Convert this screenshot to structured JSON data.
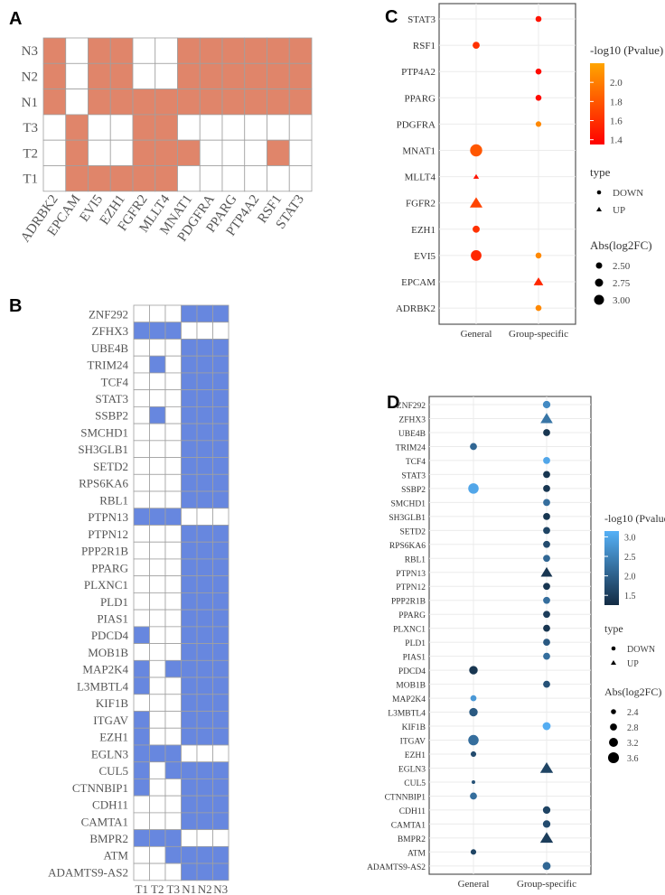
{
  "panels": {
    "a": "A",
    "b": "B",
    "c": "C",
    "d": "D"
  },
  "chart_data": [
    {
      "id": "A",
      "type": "heatmap",
      "colors": {
        "on": "#e0856a",
        "off": "#ffffff"
      },
      "columns": [
        "ADRBK2",
        "EPCAM",
        "EVI5",
        "EZH1",
        "FGFR2",
        "MLLT4",
        "MNAT1",
        "PDGFRA",
        "PPARG",
        "PTP4A2",
        "RSF1",
        "STAT3"
      ],
      "rows": [
        "N3",
        "N2",
        "N1",
        "T3",
        "T2",
        "T1"
      ],
      "values": [
        [
          1,
          0,
          1,
          1,
          0,
          0,
          1,
          1,
          1,
          1,
          1,
          1
        ],
        [
          1,
          0,
          1,
          1,
          0,
          0,
          1,
          1,
          1,
          1,
          1,
          1
        ],
        [
          1,
          0,
          1,
          1,
          1,
          1,
          1,
          1,
          1,
          1,
          1,
          1
        ],
        [
          0,
          1,
          0,
          0,
          1,
          1,
          0,
          0,
          0,
          0,
          0,
          0
        ],
        [
          0,
          1,
          0,
          0,
          1,
          1,
          1,
          0,
          0,
          0,
          1,
          0
        ],
        [
          0,
          1,
          1,
          1,
          1,
          1,
          0,
          0,
          0,
          0,
          0,
          0
        ]
      ]
    },
    {
      "id": "B",
      "type": "heatmap",
      "colors": {
        "on": "#6787df",
        "off": "#ffffff"
      },
      "columns": [
        "T1",
        "T2",
        "T3",
        "N1",
        "N2",
        "N3"
      ],
      "rows": [
        "ZNF292",
        "ZFHX3",
        "UBE4B",
        "TRIM24",
        "TCF4",
        "STAT3",
        "SSBP2",
        "SMCHD1",
        "SH3GLB1",
        "SETD2",
        "RPS6KA6",
        "RBL1",
        "PTPN13",
        "PTPN12",
        "PPP2R1B",
        "PPARG",
        "PLXNC1",
        "PLD1",
        "PIAS1",
        "PDCD4",
        "MOB1B",
        "MAP2K4",
        "L3MBTL4",
        "KIF1B",
        "ITGAV",
        "EZH1",
        "EGLN3",
        "CUL5",
        "CTNNBIP1",
        "CDH11",
        "CAMTA1",
        "BMPR2",
        "ATM",
        "ADAMTS9-AS2"
      ],
      "values": [
        [
          0,
          0,
          0,
          1,
          1,
          1
        ],
        [
          1,
          1,
          1,
          0,
          0,
          0
        ],
        [
          0,
          0,
          0,
          1,
          1,
          1
        ],
        [
          0,
          1,
          0,
          1,
          1,
          1
        ],
        [
          0,
          0,
          0,
          1,
          1,
          1
        ],
        [
          0,
          0,
          0,
          1,
          1,
          1
        ],
        [
          0,
          1,
          0,
          1,
          1,
          1
        ],
        [
          0,
          0,
          0,
          1,
          1,
          1
        ],
        [
          0,
          0,
          0,
          1,
          1,
          1
        ],
        [
          0,
          0,
          0,
          1,
          1,
          1
        ],
        [
          0,
          0,
          0,
          1,
          1,
          1
        ],
        [
          0,
          0,
          0,
          1,
          1,
          1
        ],
        [
          1,
          1,
          1,
          0,
          0,
          0
        ],
        [
          0,
          0,
          0,
          1,
          1,
          1
        ],
        [
          0,
          0,
          0,
          1,
          1,
          1
        ],
        [
          0,
          0,
          0,
          1,
          1,
          1
        ],
        [
          0,
          0,
          0,
          1,
          1,
          1
        ],
        [
          0,
          0,
          0,
          1,
          1,
          1
        ],
        [
          0,
          0,
          0,
          1,
          1,
          1
        ],
        [
          1,
          0,
          0,
          1,
          1,
          1
        ],
        [
          0,
          0,
          0,
          1,
          1,
          1
        ],
        [
          1,
          0,
          1,
          1,
          1,
          1
        ],
        [
          1,
          0,
          0,
          1,
          1,
          1
        ],
        [
          0,
          0,
          0,
          1,
          1,
          1
        ],
        [
          1,
          0,
          0,
          1,
          1,
          1
        ],
        [
          1,
          0,
          0,
          1,
          1,
          1
        ],
        [
          1,
          1,
          1,
          0,
          0,
          0
        ],
        [
          1,
          0,
          1,
          1,
          1,
          1
        ],
        [
          1,
          0,
          0,
          1,
          1,
          1
        ],
        [
          0,
          0,
          0,
          1,
          1,
          1
        ],
        [
          0,
          0,
          0,
          1,
          1,
          1
        ],
        [
          1,
          1,
          1,
          0,
          0,
          0
        ],
        [
          0,
          0,
          1,
          1,
          1,
          1
        ],
        [
          0,
          0,
          0,
          1,
          1,
          1
        ]
      ]
    },
    {
      "id": "C",
      "type": "scatter",
      "x_categories": [
        "General",
        "Group-specific"
      ],
      "y_categories": [
        "STAT3",
        "RSF1",
        "PTP4A2",
        "PPARG",
        "PDGFRA",
        "MNAT1",
        "MLLT4",
        "FGFR2",
        "EZH1",
        "EVI5",
        "EPCAM",
        "ADRBK2"
      ],
      "color_scale": {
        "title": "-log10 (Pvalue)",
        "low": "#ff0000",
        "high": "#ffa500",
        "range": [
          1.35,
          2.2
        ],
        "ticks": [
          "1.4",
          "1.6",
          "1.8",
          "2.0"
        ]
      },
      "shape_legend": {
        "title": "type",
        "items": [
          "DOWN",
          "UP"
        ]
      },
      "size_legend": {
        "title": "Abs(log2FC)",
        "ticks": [
          "2.50",
          "2.75",
          "3.00"
        ],
        "range": [
          2.5,
          3.0
        ]
      },
      "points": [
        {
          "gene": "STAT3",
          "group": "Group-specific",
          "pvalue": 1.45,
          "log2fc": 2.45,
          "type": "DOWN"
        },
        {
          "gene": "RSF1",
          "group": "General",
          "pvalue": 1.6,
          "log2fc": 2.6,
          "type": "DOWN"
        },
        {
          "gene": "PTP4A2",
          "group": "Group-specific",
          "pvalue": 1.4,
          "log2fc": 2.45,
          "type": "DOWN"
        },
        {
          "gene": "PPARG",
          "group": "Group-specific",
          "pvalue": 1.4,
          "log2fc": 2.45,
          "type": "DOWN"
        },
        {
          "gene": "PDGFRA",
          "group": "Group-specific",
          "pvalue": 2.05,
          "log2fc": 2.4,
          "type": "DOWN"
        },
        {
          "gene": "MNAT1",
          "group": "General",
          "pvalue": 1.8,
          "log2fc": 3.3,
          "type": "DOWN"
        },
        {
          "gene": "MLLT4",
          "group": "General",
          "pvalue": 1.45,
          "log2fc": 2.2,
          "type": "UP"
        },
        {
          "gene": "FGFR2",
          "group": "General",
          "pvalue": 1.7,
          "log2fc": 2.9,
          "type": "UP"
        },
        {
          "gene": "EZH1",
          "group": "General",
          "pvalue": 1.6,
          "log2fc": 2.6,
          "type": "DOWN"
        },
        {
          "gene": "EVI5",
          "group": "General",
          "pvalue": 1.55,
          "log2fc": 3.1,
          "type": "DOWN"
        },
        {
          "gene": "EVI5",
          "group": "Group-specific",
          "pvalue": 2.05,
          "log2fc": 2.45,
          "type": "DOWN"
        },
        {
          "gene": "EPCAM",
          "group": "Group-specific",
          "pvalue": 1.55,
          "log2fc": 2.6,
          "type": "UP"
        },
        {
          "gene": "ADRBK2",
          "group": "Group-specific",
          "pvalue": 2.05,
          "log2fc": 2.45,
          "type": "DOWN"
        }
      ]
    },
    {
      "id": "D",
      "type": "scatter",
      "x_categories": [
        "General",
        "Group-specific"
      ],
      "y_categories": [
        "ZNF292",
        "ZFHX3",
        "UBE4B",
        "TRIM24",
        "TCF4",
        "STAT3",
        "SSBP2",
        "SMCHD1",
        "SH3GLB1",
        "SETD2",
        "RPS6KA6",
        "RBL1",
        "PTPN13",
        "PTPN12",
        "PPP2R1B",
        "PPARG",
        "PLXNC1",
        "PLD1",
        "PIAS1",
        "PDCD4",
        "MOB1B",
        "MAP2K4",
        "L3MBTL4",
        "KIF1B",
        "ITGAV",
        "EZH1",
        "EGLN3",
        "CUL5",
        "CTNNBIP1",
        "CDH11",
        "CAMTA1",
        "BMPR2",
        "ATM",
        "ADAMTS9-AS2"
      ],
      "color_scale": {
        "title": "-log10 (Pvalue)",
        "low": "#132b43",
        "high": "#56b1f7",
        "range": [
          1.25,
          3.15
        ],
        "ticks": [
          "1.5",
          "2.0",
          "2.5",
          "3.0"
        ]
      },
      "shape_legend": {
        "title": "type",
        "items": [
          "DOWN",
          "UP"
        ]
      },
      "size_legend": {
        "title": "Abs(log2FC)",
        "ticks": [
          "2.4",
          "2.8",
          "3.2",
          "3.6"
        ],
        "range": [
          2.4,
          3.6
        ]
      },
      "points": [
        {
          "gene": "ZNF292",
          "group": "Group-specific",
          "pvalue": 2.6,
          "log2fc": 2.9,
          "type": "DOWN"
        },
        {
          "gene": "ZFHX3",
          "group": "Group-specific",
          "pvalue": 2.3,
          "log2fc": 3.2,
          "type": "UP"
        },
        {
          "gene": "UBE4B",
          "group": "Group-specific",
          "pvalue": 1.4,
          "log2fc": 2.8,
          "type": "DOWN"
        },
        {
          "gene": "TRIM24",
          "group": "General",
          "pvalue": 2.1,
          "log2fc": 2.8,
          "type": "DOWN"
        },
        {
          "gene": "TCF4",
          "group": "Group-specific",
          "pvalue": 3.0,
          "log2fc": 2.8,
          "type": "DOWN"
        },
        {
          "gene": "STAT3",
          "group": "Group-specific",
          "pvalue": 1.4,
          "log2fc": 2.8,
          "type": "DOWN"
        },
        {
          "gene": "SSBP2",
          "group": "General",
          "pvalue": 3.0,
          "log2fc": 3.5,
          "type": "DOWN"
        },
        {
          "gene": "SSBP2",
          "group": "Group-specific",
          "pvalue": 1.4,
          "log2fc": 2.8,
          "type": "DOWN"
        },
        {
          "gene": "SMCHD1",
          "group": "Group-specific",
          "pvalue": 2.2,
          "log2fc": 2.8,
          "type": "DOWN"
        },
        {
          "gene": "SH3GLB1",
          "group": "Group-specific",
          "pvalue": 1.4,
          "log2fc": 2.8,
          "type": "DOWN"
        },
        {
          "gene": "SETD2",
          "group": "Group-specific",
          "pvalue": 1.6,
          "log2fc": 2.8,
          "type": "DOWN"
        },
        {
          "gene": "RPS6KA6",
          "group": "Group-specific",
          "pvalue": 1.7,
          "log2fc": 2.8,
          "type": "DOWN"
        },
        {
          "gene": "RBL1",
          "group": "Group-specific",
          "pvalue": 2.1,
          "log2fc": 2.8,
          "type": "DOWN"
        },
        {
          "gene": "PTPN13",
          "group": "Group-specific",
          "pvalue": 1.4,
          "log2fc": 3.1,
          "type": "UP"
        },
        {
          "gene": "PTPN12",
          "group": "Group-specific",
          "pvalue": 1.4,
          "log2fc": 2.8,
          "type": "DOWN"
        },
        {
          "gene": "PPP2R1B",
          "group": "Group-specific",
          "pvalue": 2.2,
          "log2fc": 2.8,
          "type": "DOWN"
        },
        {
          "gene": "PPARG",
          "group": "Group-specific",
          "pvalue": 1.5,
          "log2fc": 2.8,
          "type": "DOWN"
        },
        {
          "gene": "PLXNC1",
          "group": "Group-specific",
          "pvalue": 1.4,
          "log2fc": 2.8,
          "type": "DOWN"
        },
        {
          "gene": "PLD1",
          "group": "Group-specific",
          "pvalue": 1.9,
          "log2fc": 2.8,
          "type": "DOWN"
        },
        {
          "gene": "PIAS1",
          "group": "Group-specific",
          "pvalue": 2.2,
          "log2fc": 2.8,
          "type": "DOWN"
        },
        {
          "gene": "PDCD4",
          "group": "General",
          "pvalue": 1.4,
          "log2fc": 3.1,
          "type": "DOWN"
        },
        {
          "gene": "MOB1B",
          "group": "Group-specific",
          "pvalue": 1.8,
          "log2fc": 2.8,
          "type": "DOWN"
        },
        {
          "gene": "MAP2K4",
          "group": "General",
          "pvalue": 2.8,
          "log2fc": 2.6,
          "type": "DOWN"
        },
        {
          "gene": "L3MBTL4",
          "group": "General",
          "pvalue": 1.9,
          "log2fc": 3.1,
          "type": "DOWN"
        },
        {
          "gene": "KIF1B",
          "group": "Group-specific",
          "pvalue": 3.1,
          "log2fc": 3.0,
          "type": "DOWN"
        },
        {
          "gene": "ITGAV",
          "group": "General",
          "pvalue": 2.2,
          "log2fc": 3.5,
          "type": "DOWN"
        },
        {
          "gene": "EZH1",
          "group": "General",
          "pvalue": 1.7,
          "log2fc": 2.5,
          "type": "DOWN"
        },
        {
          "gene": "EGLN3",
          "group": "Group-specific",
          "pvalue": 1.6,
          "log2fc": 3.3,
          "type": "UP"
        },
        {
          "gene": "CUL5",
          "group": "General",
          "pvalue": 1.8,
          "log2fc": 2.1,
          "type": "DOWN"
        },
        {
          "gene": "CTNNBIP1",
          "group": "General",
          "pvalue": 2.2,
          "log2fc": 2.8,
          "type": "DOWN"
        },
        {
          "gene": "CDH11",
          "group": "Group-specific",
          "pvalue": 1.6,
          "log2fc": 2.9,
          "type": "DOWN"
        },
        {
          "gene": "CAMTA1",
          "group": "Group-specific",
          "pvalue": 1.7,
          "log2fc": 2.9,
          "type": "DOWN"
        },
        {
          "gene": "BMPR2",
          "group": "Group-specific",
          "pvalue": 1.5,
          "log2fc": 3.3,
          "type": "UP"
        },
        {
          "gene": "ATM",
          "group": "General",
          "pvalue": 1.6,
          "log2fc": 2.5,
          "type": "DOWN"
        },
        {
          "gene": "ADAMTS9-AS2",
          "group": "Group-specific",
          "pvalue": 2.1,
          "log2fc": 3.0,
          "type": "DOWN"
        }
      ]
    }
  ]
}
